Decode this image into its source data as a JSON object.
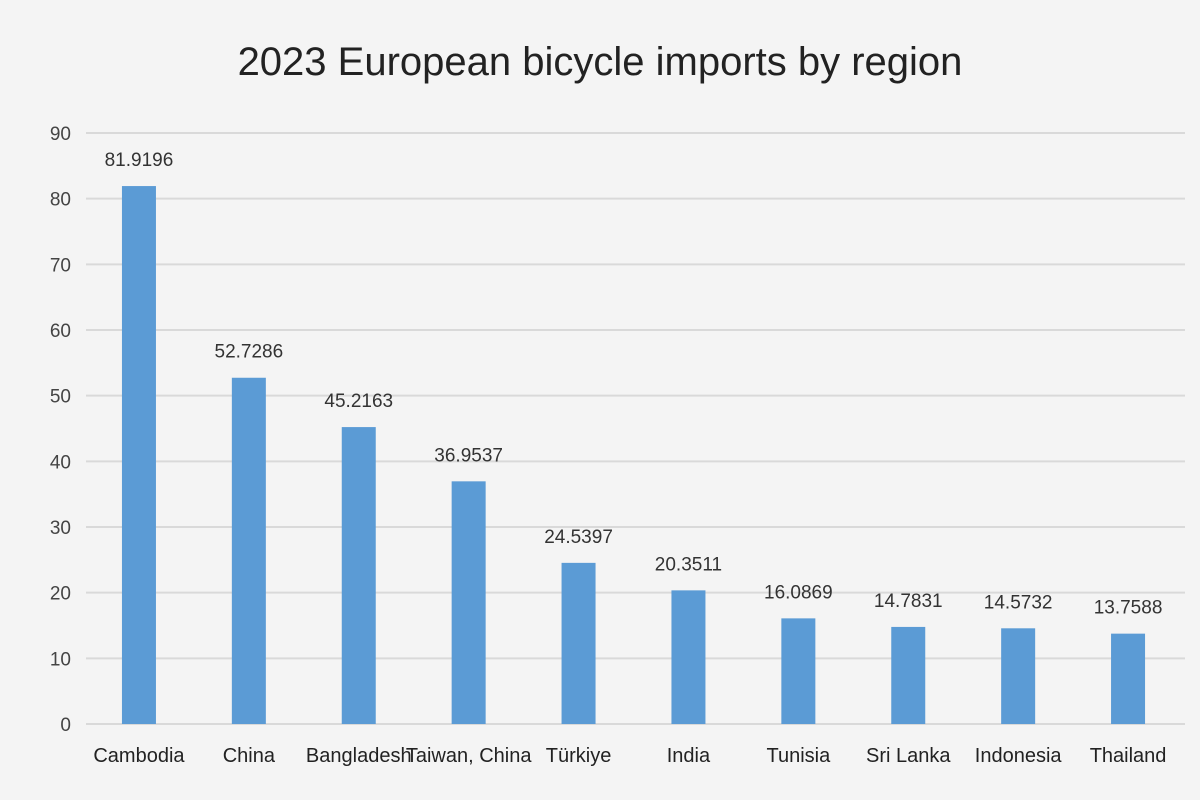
{
  "chart_data": {
    "type": "bar",
    "title": "2023 European bicycle imports by region",
    "xlabel": "",
    "ylabel": "",
    "categories": [
      "Cambodia",
      "China",
      "Bangladesh",
      "Taiwan, China",
      "Türkiye",
      "India",
      "Tunisia",
      "Sri Lanka",
      "Indonesia",
      "Thailand"
    ],
    "values": [
      81.9196,
      52.7286,
      45.2163,
      36.9537,
      24.5397,
      20.3511,
      16.0869,
      14.7831,
      14.5732,
      13.7588
    ],
    "data_labels": [
      "81.9196",
      "52.7286",
      "45.2163",
      "36.9537",
      "24.5397",
      "20.3511",
      "16.0869",
      "14.7831",
      "14.5732",
      "13.7588"
    ],
    "ylim": [
      0,
      90
    ],
    "yticks": [
      0,
      10,
      20,
      30,
      40,
      50,
      60,
      70,
      80,
      90
    ],
    "grid": true,
    "legend": "none",
    "colors": {
      "bar": "#5b9bd5",
      "grid": "#d9d9d9",
      "background": "#f4f4f4"
    }
  }
}
